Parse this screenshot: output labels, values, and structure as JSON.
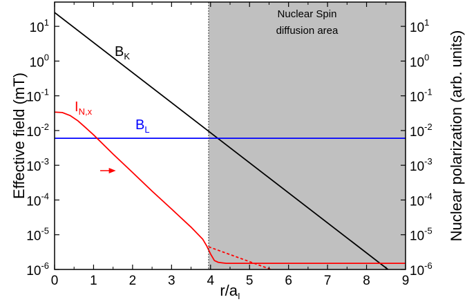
{
  "chart_data": {
    "type": "line",
    "xlabel": "r/a",
    "xlabel_subscript": "I",
    "ylabel_left": "Effective field (mT)",
    "ylabel_right": "Nuclear polarization (arb. units)",
    "xlim": [
      0,
      9
    ],
    "x_ticks": [
      "0",
      "1",
      "2",
      "3",
      "4",
      "5",
      "6",
      "7",
      "8",
      "9"
    ],
    "y_scale": "log",
    "ylim": [
      1e-06,
      50
    ],
    "y_ticks": [
      {
        "base": "10",
        "exp": "-6",
        "value": 1e-06
      },
      {
        "base": "10",
        "exp": "-5",
        "value": 1e-05
      },
      {
        "base": "10",
        "exp": "-4",
        "value": 0.0001
      },
      {
        "base": "10",
        "exp": "-3",
        "value": 0.001
      },
      {
        "base": "10",
        "exp": "-2",
        "value": 0.01
      },
      {
        "base": "10",
        "exp": "-1",
        "value": 0.1
      },
      {
        "base": "10",
        "exp": "0",
        "value": 1
      },
      {
        "base": "10",
        "exp": "1",
        "value": 10
      }
    ],
    "shaded_region": {
      "x_start": 3.95,
      "x_end": 9,
      "color": "#c0c0c0",
      "label_line1": "Nuclear Spin",
      "label_line2": "diffusion area"
    },
    "boundary_line_x": 3.95,
    "series": [
      {
        "name": "B",
        "subscript": "K",
        "color": "#000000",
        "style": "solid",
        "x": [
          0,
          8.55
        ],
        "y": [
          25,
          1e-06
        ]
      },
      {
        "name": "B",
        "subscript": "L",
        "color": "#0000ff",
        "style": "solid",
        "x": [
          0,
          9
        ],
        "y": [
          0.006,
          0.006
        ]
      },
      {
        "name": "I",
        "subscript": "N,x",
        "color": "#ff0000",
        "style": "solid",
        "x": [
          0,
          0.2,
          0.4,
          0.6,
          0.8,
          1.0,
          1.5,
          2.0,
          2.5,
          3.0,
          3.5,
          3.8,
          3.9,
          4.0,
          4.1,
          4.2,
          4.4,
          9
        ],
        "y": [
          0.034,
          0.033,
          0.027,
          0.019,
          0.012,
          0.0075,
          0.0021,
          0.00062,
          0.00018,
          5.5e-05,
          1.65e-05,
          7.4e-06,
          4.8e-06,
          2.8e-06,
          1.8e-06,
          1.6e-06,
          1.5e-06,
          1.5e-06
        ]
      },
      {
        "name": "",
        "color": "#ff0000",
        "style": "dashed",
        "x": [
          3.95,
          5.55
        ],
        "y": [
          4.5e-06,
          1e-06
        ]
      }
    ],
    "arrow": {
      "x_start": 1.17,
      "x_end": 1.57,
      "y": 0.0007,
      "color": "#ff0000"
    }
  }
}
